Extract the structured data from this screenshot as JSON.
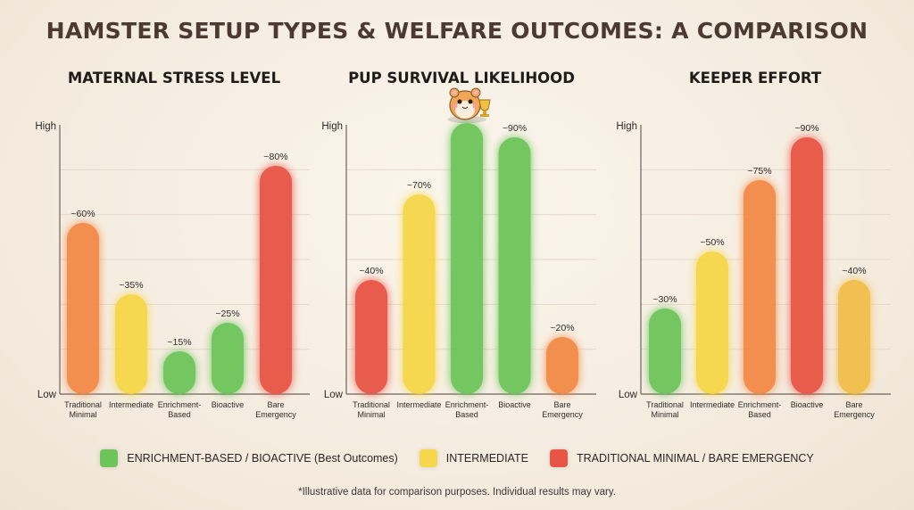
{
  "title": "HAMSTER SETUP TYPES & WELFARE OUTCOMES: A COMPARISON",
  "colors": {
    "green": "#6dc45a",
    "yellow": "#f6d64a",
    "orange": "#f28a46",
    "red": "#e85545",
    "gold": "#f2be4a"
  },
  "chart_data": [
    {
      "type": "bar",
      "title": "MATERNAL STRESS LEVEL",
      "y_top_label": "High",
      "y_bottom_label": "Low",
      "categories": [
        "Traditional\nMinimal",
        "Intermediate",
        "Enrichment-\nBased",
        "Bioactive",
        "Bare\nEmergency"
      ],
      "values": [
        60,
        35,
        15,
        25,
        80
      ],
      "labels": [
        "~60%",
        "~35%",
        "~15%",
        "~25%",
        "~80%"
      ],
      "bar_colors": [
        "orange",
        "yellow",
        "green",
        "green",
        "red"
      ],
      "ylim": [
        0,
        100
      ],
      "grid": true
    },
    {
      "type": "bar",
      "title": "PUP SURVIVAL LIKELIHOOD",
      "y_top_label": "High",
      "y_bottom_label": "Low",
      "categories": [
        "Traditional\nMinimal",
        "Intermediate",
        "Enrichment-\nBased",
        "Bioactive",
        "Bare\nEmergency"
      ],
      "values": [
        40,
        70,
        95,
        90,
        20
      ],
      "labels": [
        "~40%",
        "~70%",
        "",
        "~90%",
        "~20%"
      ],
      "bar_colors": [
        "red",
        "yellow",
        "green",
        "green",
        "orange"
      ],
      "ylim": [
        0,
        100
      ],
      "grid": true,
      "mascot_on_category": 2
    },
    {
      "type": "bar",
      "title": "KEEPER EFFORT",
      "y_top_label": "High",
      "y_bottom_label": "Low",
      "categories": [
        "Traditional\nMinimal",
        "Intermediate",
        "Enrichment-\nBased",
        "Bioactive",
        "Bare\nEmergency"
      ],
      "values": [
        30,
        50,
        75,
        90,
        40
      ],
      "labels": [
        "~30%",
        "~50%",
        "~75%",
        "~90%",
        "~40%"
      ],
      "bar_colors": [
        "green",
        "yellow",
        "orange",
        "red",
        "gold"
      ],
      "ylim": [
        0,
        100
      ],
      "grid": true
    }
  ],
  "legend": [
    {
      "label": "ENRICHMENT-BASED / BIOACTIVE (Best Outcomes)",
      "color": "green"
    },
    {
      "label": "INTERMEDIATE",
      "color": "yellow"
    },
    {
      "label": "TRADITIONAL MINIMAL / BARE EMERGENCY",
      "color": "red"
    }
  ],
  "footnote": "*Illustrative data for comparison purposes. Individual results may vary."
}
